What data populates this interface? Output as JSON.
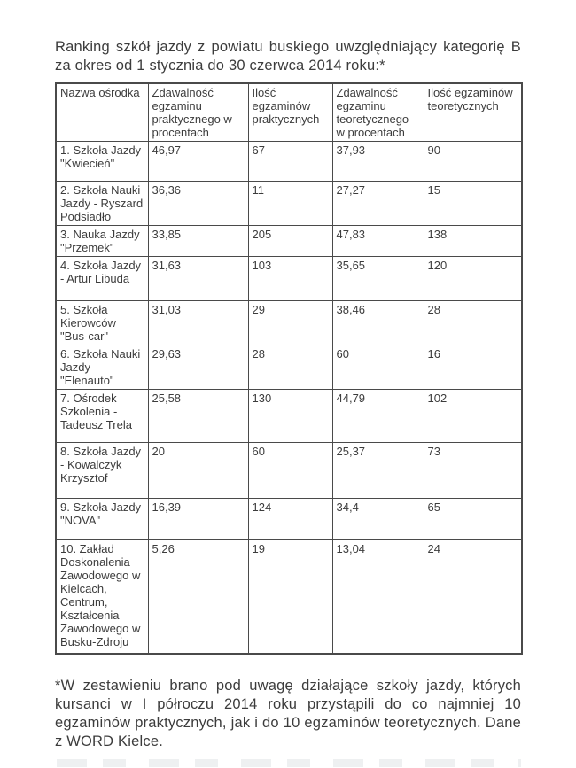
{
  "page": {
    "title": "Ranking szkół jazdy z powiatu buskiego uwzględniający kategorię B za okres od 1 stycznia do 30 czerwca 2014 roku:*",
    "footnote": "*W zestawieniu brano pod uwagę działające szkoły jazdy, których kursanci w I półroczu 2014 roku przystąpili do co najmniej 10 egzaminów praktycznych, jak i do 10 egzaminów teoretycznych. Dane z WORD Kielce."
  },
  "table": {
    "headers": [
      "Nazwa ośrodka",
      "Zdawalność egzaminu praktycznego w procentach",
      "Ilość egzaminów praktycznych",
      "Zdawalność egzaminu teoretycznego w procentach",
      "Ilość egzaminów teoretycznych"
    ],
    "rows": [
      [
        "1. Szkoła Jazdy \"Kwiecień\"",
        "46,97",
        "67",
        "37,93",
        "90"
      ],
      [
        "2. Szkoła Nauki Jazdy - Ryszard Podsiadło",
        "36,36",
        "11",
        "27,27",
        "15"
      ],
      [
        "3. Nauka Jazdy \"Przemek\"",
        "33,85",
        "205",
        "47,83",
        "138"
      ],
      [
        "4. Szkoła Jazdy - Artur Libuda",
        "31,63",
        "103",
        "35,65",
        "120"
      ],
      [
        "5. Szkoła Kierowców \"Bus-car\"",
        "31,03",
        "29",
        "38,46",
        "28"
      ],
      [
        "6. Szkoła Nauki Jazdy \"Elenauto\"",
        "29,63",
        "28",
        "60",
        "16"
      ],
      [
        "7. Ośrodek Szkolenia - Tadeusz Trela",
        "25,58",
        "130",
        "44,79",
        "102"
      ],
      [
        "8. Szkoła Jazdy - Kowalczyk Krzysztof",
        "20",
        "60",
        "25,37",
        "73"
      ],
      [
        "9. Szkoła Jazdy \"NOVA\"",
        "16,39",
        "124",
        "34,4",
        "65"
      ],
      [
        "10. Zakład Doskonalenia Zawodowego w Kielcach, Centrum, Kształcenia Zawodowego w Busku-Zdroju",
        "5,26",
        "19",
        "13,04",
        "24"
      ]
    ]
  },
  "colors": {
    "text": "#3c3c3c",
    "table_border": "#4a4a4a",
    "background": "#ffffff"
  }
}
